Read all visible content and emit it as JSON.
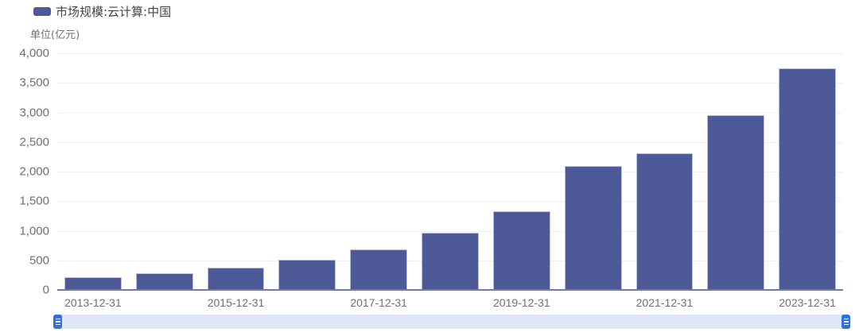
{
  "chart_data": {
    "type": "bar",
    "title": "",
    "legend": [
      "市场规模:云计算:中国"
    ],
    "legend_position": "top-left",
    "ylabel": "单位(亿元)",
    "xlabel": "",
    "ylim": [
      0,
      4000
    ],
    "yticks": [
      0,
      500,
      1000,
      1500,
      2000,
      2500,
      3000,
      3500,
      4000
    ],
    "ytick_labels": [
      "0",
      "500",
      "1,000",
      "1,500",
      "2,000",
      "2,500",
      "3,000",
      "3,500",
      "4,000"
    ],
    "grid": true,
    "categories": [
      "2013-12-31",
      "2014-12-31",
      "2015-12-31",
      "2016-12-31",
      "2017-12-31",
      "2018-12-31",
      "2019-12-31",
      "2020-12-31",
      "2021-12-31",
      "2022-12-31",
      "2023-12-31"
    ],
    "visible_xtick_labels": [
      "2013-12-31",
      "2015-12-31",
      "2017-12-31",
      "2019-12-31",
      "2021-12-31",
      "2023-12-31"
    ],
    "series": [
      {
        "name": "市场规模:云计算:中国",
        "color": "#4e5a98",
        "values": [
          210,
          280,
          370,
          510,
          690,
          960,
          1330,
          2090,
          2310,
          2950,
          3750
        ]
      }
    ],
    "datazoom": {
      "start": 0,
      "end": 100
    }
  },
  "legend": {
    "label": "市场规模:云计算:中国",
    "color": "#4e5a98"
  },
  "unit_label": "单位(亿元)",
  "yticks": [
    "4,000",
    "3,500",
    "3,000",
    "2,500",
    "2,000",
    "1,500",
    "1,000",
    "500",
    "0"
  ],
  "xticks": [
    "2013-12-31",
    "2015-12-31",
    "2017-12-31",
    "2019-12-31",
    "2021-12-31",
    "2023-12-31"
  ]
}
